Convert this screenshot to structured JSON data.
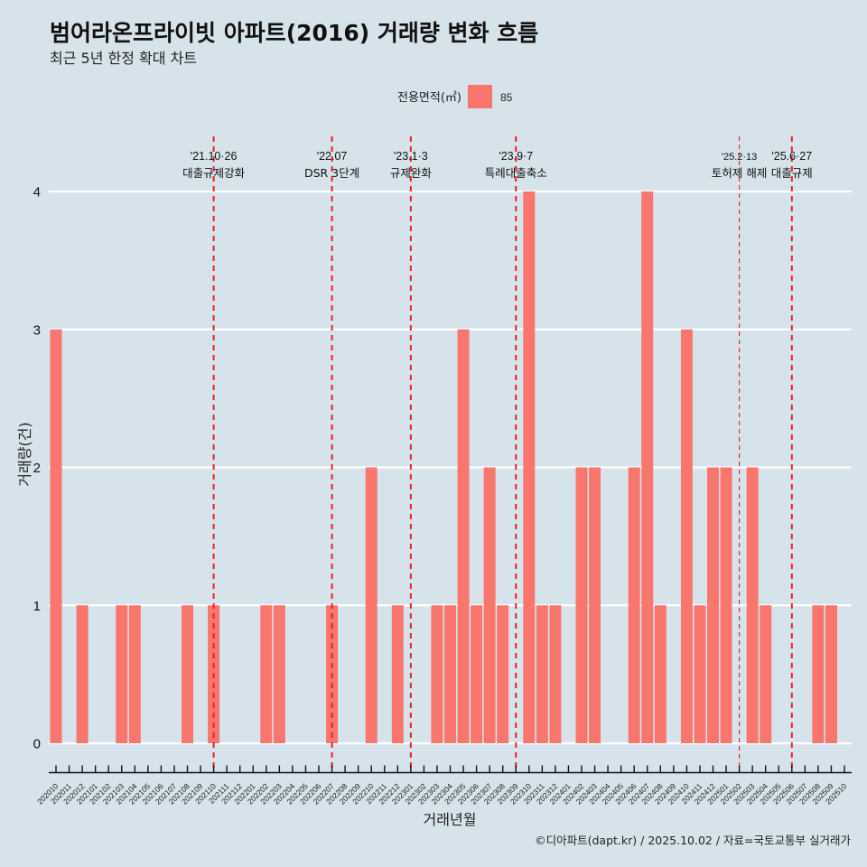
{
  "header": {
    "title": "범어라온프라이빗 아파트(2016) 거래량 변화 흐름",
    "subtitle": "최근 5년 한정 확대 차트"
  },
  "legend": {
    "title": "전용면적(㎡)",
    "items": [
      {
        "label": "85",
        "color": "#F8766D"
      }
    ]
  },
  "footer": {
    "credit": "©디아파트(dapt.kr) / 2025.10.02 / 자료=국토교통부 실거래가"
  },
  "colors": {
    "background": "#d6e3ea",
    "bar": "#F8766D",
    "event_line": "#e8202a",
    "grid": "#ffffff"
  },
  "chart_data": {
    "type": "bar",
    "title": "범어라온프라이빗 아파트(2016) 거래량 변화 흐름",
    "subtitle": "최근 5년 한정 확대 차트",
    "xlabel": "거래년월",
    "ylabel": "거래량(건)",
    "ylim": [
      0,
      4
    ],
    "yticks": [
      0,
      1,
      2,
      3,
      4
    ],
    "grid": "horizontal",
    "legend_position": "top",
    "categories": [
      "202010",
      "202011",
      "202012",
      "202101",
      "202102",
      "202103",
      "202104",
      "202105",
      "202106",
      "202107",
      "202108",
      "202109",
      "202110",
      "202111",
      "202112",
      "202201",
      "202202",
      "202203",
      "202204",
      "202205",
      "202206",
      "202207",
      "202208",
      "202209",
      "202210",
      "202211",
      "202212",
      "202301",
      "202302",
      "202303",
      "202304",
      "202305",
      "202306",
      "202307",
      "202308",
      "202309",
      "202310",
      "202311",
      "202312",
      "202401",
      "202402",
      "202403",
      "202404",
      "202405",
      "202406",
      "202407",
      "202408",
      "202409",
      "202410",
      "202411",
      "202412",
      "202501",
      "202502",
      "202503",
      "202504",
      "202505",
      "202506",
      "202507",
      "202508",
      "202509",
      "202510"
    ],
    "series": [
      {
        "name": "85",
        "values": [
          3,
          0,
          1,
          0,
          0,
          1,
          1,
          0,
          0,
          0,
          1,
          0,
          1,
          0,
          0,
          0,
          1,
          1,
          0,
          0,
          0,
          1,
          0,
          0,
          2,
          0,
          1,
          0,
          0,
          1,
          1,
          3,
          1,
          2,
          1,
          0,
          4,
          1,
          1,
          0,
          2,
          2,
          0,
          0,
          2,
          4,
          1,
          0,
          3,
          1,
          2,
          2,
          0,
          2,
          1,
          0,
          0,
          0,
          1,
          1,
          0
        ]
      }
    ],
    "events": [
      {
        "category": "202110",
        "date": "'21.10·26",
        "label": "대출규제강화"
      },
      {
        "category": "202207",
        "date": "'22.07",
        "label": "DSR 3단계"
      },
      {
        "category": "202301",
        "date": "'23.1·3",
        "label": "규제완화"
      },
      {
        "category": "202309",
        "date": "'23.9·7",
        "label": "특례대출축소"
      },
      {
        "category": "202502",
        "date": "'25.2·13",
        "label": "토허제 해제"
      },
      {
        "category": "202506",
        "date": "'25.6·27",
        "label": "대출규제"
      }
    ]
  }
}
